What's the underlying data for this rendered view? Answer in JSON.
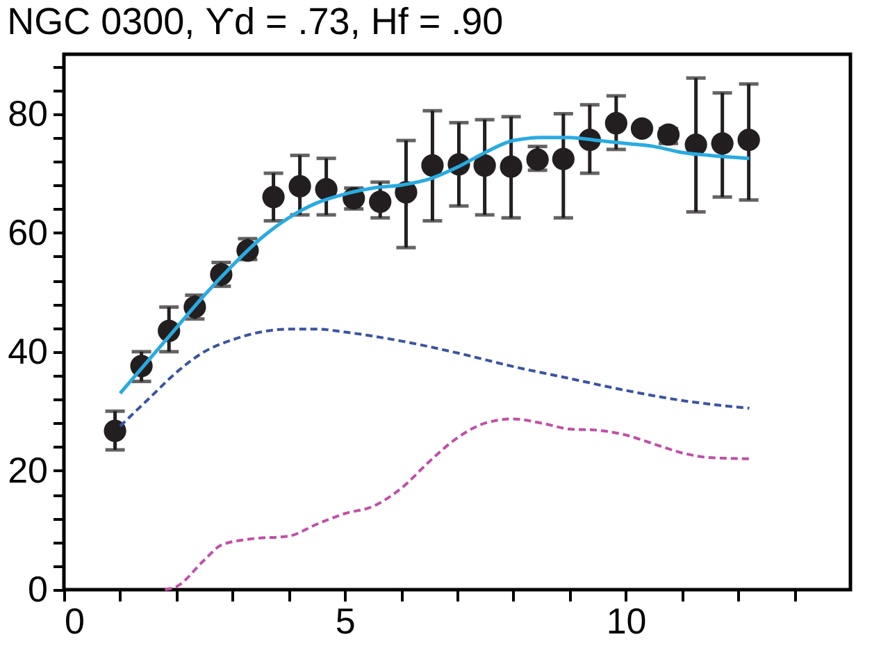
{
  "chart_data": {
    "type": "scatter",
    "title": "NGC 0300, ϒd = .73, Hf = .90",
    "xlim": [
      0,
      14
    ],
    "ylim": [
      0,
      90
    ],
    "xticks": [
      0,
      {
        "value": 1,
        "label": null
      },
      {
        "value": 2,
        "label": null
      },
      {
        "value": 3,
        "label": null
      },
      {
        "value": 4,
        "label": null
      },
      5,
      {
        "value": 6,
        "label": null
      },
      {
        "value": 7,
        "label": null
      },
      {
        "value": 8,
        "label": null
      },
      {
        "value": 9,
        "label": null
      },
      10,
      {
        "value": 11,
        "label": null
      },
      {
        "value": 12,
        "label": null
      },
      {
        "value": 13,
        "label": null
      }
    ],
    "yticks": [
      0,
      {
        "value": 4,
        "label": null
      },
      {
        "value": 8,
        "label": null
      },
      {
        "value": 12,
        "label": null
      },
      {
        "value": 16,
        "label": null
      },
      20,
      {
        "value": 24,
        "label": null
      },
      {
        "value": 28,
        "label": null
      },
      {
        "value": 32,
        "label": null
      },
      {
        "value": 36,
        "label": null
      },
      40,
      {
        "value": 44,
        "label": null
      },
      {
        "value": 48,
        "label": null
      },
      {
        "value": 52,
        "label": null
      },
      {
        "value": 56,
        "label": null
      },
      60,
      {
        "value": 64,
        "label": null
      },
      {
        "value": 68,
        "label": null
      },
      {
        "value": 72,
        "label": null
      },
      {
        "value": 76,
        "label": null
      },
      80,
      {
        "value": 84,
        "label": null
      },
      {
        "value": 88,
        "label": null
      }
    ],
    "grid": false,
    "series": [
      {
        "color": "#231f20",
        "marker": "circle",
        "x": [
          0.91,
          1.38,
          1.87,
          2.33,
          2.8,
          3.27,
          3.73,
          4.2,
          4.67,
          5.16,
          5.63,
          6.09,
          6.56,
          7.03,
          7.49,
          7.96,
          8.43,
          8.89,
          9.36,
          9.83,
          10.29,
          10.76,
          11.25,
          11.72,
          12.19
        ],
        "values": [
          26.7,
          37.6,
          43.5,
          47.5,
          53,
          57,
          66,
          67.8,
          67.3,
          65.8,
          65.2,
          66.8,
          71.3,
          71.5,
          71.3,
          71.1,
          72.3,
          72.4,
          75.6,
          78.4,
          77.5,
          76.5,
          74.8,
          75,
          75.6
        ],
        "errors": [
          [
            23.5,
            30
          ],
          [
            35,
            40
          ],
          [
            40,
            47.5
          ],
          [
            45.5,
            49.5
          ],
          [
            51,
            55
          ],
          [
            55.5,
            59
          ],
          [
            62,
            70
          ],
          [
            63,
            73
          ],
          [
            63,
            72.5
          ],
          [
            64,
            67.5
          ],
          [
            62.5,
            68.5
          ],
          [
            57.5,
            75.5
          ],
          [
            62,
            80.5
          ],
          [
            64.5,
            78.5
          ],
          [
            63,
            79
          ],
          [
            62.5,
            79.5
          ],
          [
            70.5,
            74.5
          ],
          [
            62.5,
            80
          ],
          [
            70,
            81.5
          ],
          [
            74,
            83
          ],
          null,
          [
            75,
            77.5
          ],
          [
            63.5,
            86
          ],
          [
            66,
            83.5
          ],
          [
            65.5,
            85
          ]
        ]
      },
      {
        "type": "line",
        "color": "#29abe2",
        "line_style": "solid",
        "x": [
          1,
          1.5,
          2,
          2.5,
          3,
          3.5,
          4,
          4.5,
          5,
          5.5,
          6,
          6.5,
          7,
          7.5,
          8,
          8.5,
          9,
          9.5,
          10,
          10.5,
          11,
          11.5,
          12.2
        ],
        "values": [
          33,
          38.5,
          44,
          49.5,
          54.5,
          59,
          62.5,
          65,
          66.5,
          67.5,
          68,
          69,
          71,
          73.5,
          75.5,
          76,
          76,
          75.5,
          75,
          74.5,
          73.5,
          73,
          72.5
        ]
      },
      {
        "type": "line",
        "color": "#3953a4",
        "line_style": "dashed",
        "x": [
          1,
          1.5,
          2,
          2.5,
          3,
          3.5,
          4,
          4.5,
          5,
          6,
          7,
          8,
          9,
          10,
          11,
          12.2
        ],
        "values": [
          27.5,
          32,
          36.5,
          40,
          42,
          43.3,
          43.8,
          43.8,
          43.3,
          41.8,
          39.8,
          37.5,
          35.5,
          33.5,
          31.8,
          30.5
        ]
      },
      {
        "type": "line",
        "color": "#c24ea8",
        "line_style": "dashed",
        "x": [
          1.8,
          2,
          2.5,
          2.8,
          3.3,
          4,
          4.5,
          5,
          5.5,
          6,
          6.5,
          7,
          7.5,
          8,
          8.5,
          9,
          9.5,
          10,
          10.5,
          11,
          11.5,
          12.2
        ],
        "values": [
          0,
          0.5,
          5,
          7.5,
          8.5,
          9,
          11,
          12.8,
          14,
          17,
          21.5,
          25.5,
          28,
          28.7,
          28,
          27,
          26.8,
          26,
          24.5,
          23,
          22.2,
          22
        ]
      }
    ]
  }
}
